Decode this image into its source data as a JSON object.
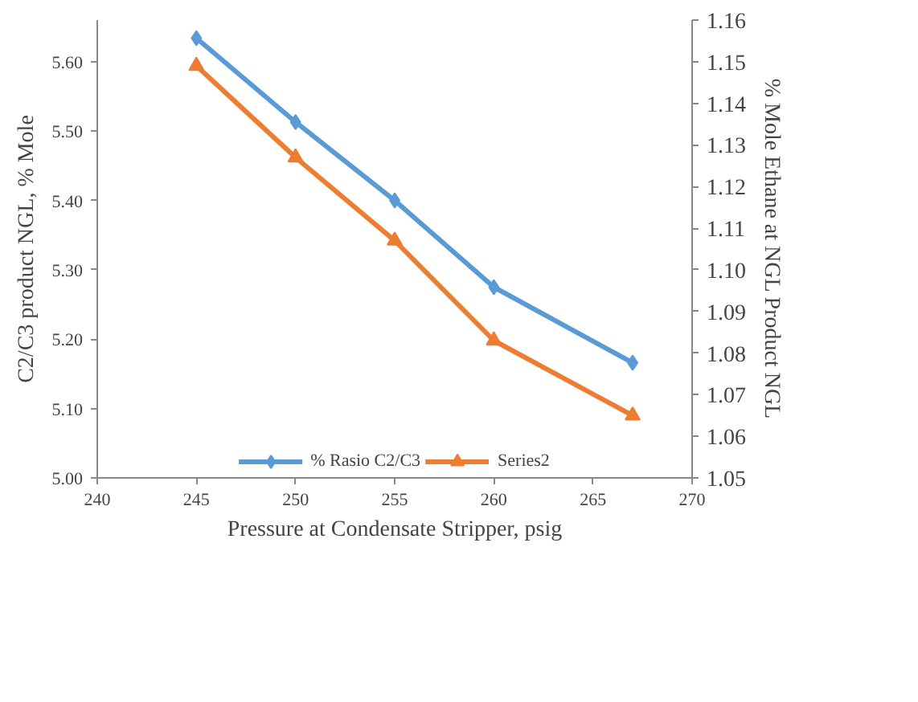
{
  "chart_data": {
    "type": "line",
    "xlabel": "Pressure at Condensate Stripper, psig",
    "ylabel": "C2/C3 product NGL, % Mole",
    "y2label": "% Mole Ethane at NGL Product NGL",
    "x": [
      245,
      250,
      255,
      260,
      267
    ],
    "series": [
      {
        "name": "% Rasio C2/C3",
        "color": "#5b9bd5",
        "values": [
          5.634,
          5.513,
          5.4,
          5.275,
          5.166
        ],
        "marker": "diamond"
      },
      {
        "name": "Series2",
        "color": "#ed7d31",
        "values": [
          1.149,
          1.127,
          1.107,
          1.083,
          1.065
        ],
        "axis": "y2",
        "marker": "triangle"
      }
    ],
    "xlim": [
      240,
      270
    ],
    "xticks": [
      240,
      245,
      250,
      255,
      260,
      265,
      270
    ],
    "ylim": [
      5.0,
      5.66
    ],
    "yticks": [
      {
        "value": 5.0,
        "label": "5.00"
      },
      {
        "value": 5.1,
        "label": "5.10"
      },
      {
        "value": 5.2,
        "label": "5.20"
      },
      {
        "value": 5.3,
        "label": "5.30"
      },
      {
        "value": 5.4,
        "label": "5.40"
      },
      {
        "value": 5.5,
        "label": "5.50"
      },
      {
        "value": 5.6,
        "label": "5.60"
      }
    ],
    "y2lim": [
      1.05,
      1.16
    ],
    "y2ticks": [
      1.05,
      1.06,
      1.07,
      1.08,
      1.09,
      {
        "value": 1.1,
        "label": "1.10"
      },
      1.11,
      1.12,
      1.13,
      1.14,
      1.15,
      1.16
    ],
    "grid": false,
    "legend": "bottom",
    "line_style": "solid"
  }
}
